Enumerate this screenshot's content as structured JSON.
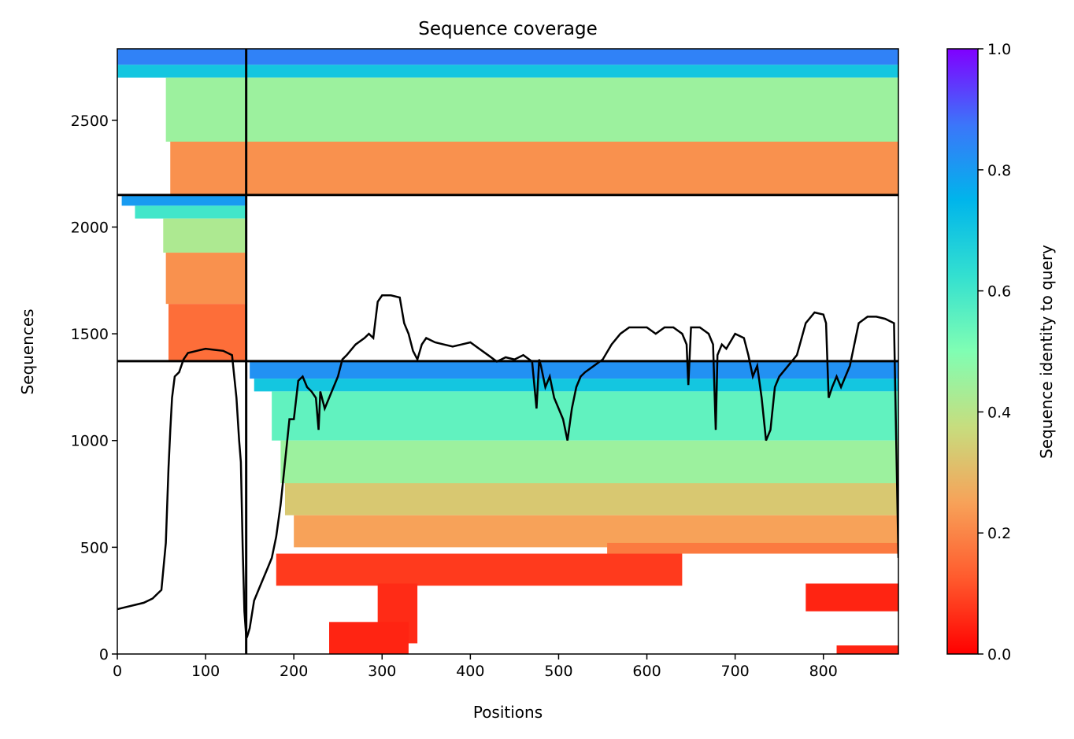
{
  "chart_data": {
    "type": "heatmap",
    "title": "Sequence coverage",
    "xlabel": "Positions",
    "ylabel": "Sequences",
    "xlim": [
      0,
      885
    ],
    "ylim": [
      0,
      2835
    ],
    "xticks": [
      0,
      100,
      200,
      300,
      400,
      500,
      600,
      700,
      800
    ],
    "yticks": [
      0,
      500,
      1000,
      1500,
      2000,
      2500
    ],
    "colorbar": {
      "label": "Sequence identity to query",
      "range": [
        0,
        1
      ],
      "ticks": [
        "0.0",
        "0.2",
        "0.4",
        "0.6",
        "0.8",
        "1.0"
      ],
      "colormap": "rainbow_r"
    },
    "chain_boundaries": {
      "x": 146,
      "y": [
        1372,
        2150
      ]
    },
    "blocks": [
      {
        "name": "chain-1-block",
        "x_range": [
          0,
          146
        ],
        "y_range": [
          1372,
          2150
        ],
        "bands": [
          {
            "y": [
              2100,
              2150
            ],
            "identity": 0.8,
            "x_start": 5
          },
          {
            "y": [
              2040,
              2100
            ],
            "identity": 0.6,
            "x_start": 20
          },
          {
            "y": [
              1880,
              2040
            ],
            "identity": 0.42,
            "x_start": 52
          },
          {
            "y": [
              1640,
              1880
            ],
            "identity": 0.22,
            "x_start": 55
          },
          {
            "y": [
              1372,
              1640
            ],
            "identity": 0.16,
            "x_start": 58
          }
        ]
      },
      {
        "name": "chain-2-block",
        "x_range": [
          146,
          885
        ],
        "y_range": [
          0,
          1372
        ],
        "bands": [
          {
            "y": [
              1290,
              1372
            ],
            "identity": 0.82,
            "x_start": 150,
            "x_end": 885
          },
          {
            "y": [
              1230,
              1290
            ],
            "identity": 0.7,
            "x_start": 155,
            "x_end": 885
          },
          {
            "y": [
              1000,
              1230
            ],
            "identity": 0.55,
            "x_start": 175,
            "x_end": 885
          },
          {
            "y": [
              800,
              1000
            ],
            "identity": 0.45,
            "x_start": 185,
            "x_end": 885
          },
          {
            "y": [
              650,
              800
            ],
            "identity": 0.33,
            "x_start": 190,
            "x_end": 885
          },
          {
            "y": [
              500,
              650
            ],
            "identity": 0.25,
            "x_start": 200,
            "x_end": 885
          },
          {
            "y": [
              470,
              520
            ],
            "identity": 0.18,
            "x_start": 555,
            "x_end": 885
          },
          {
            "y": [
              320,
              470
            ],
            "identity": 0.08,
            "x_start": 180,
            "x_end": 640
          },
          {
            "y": [
              200,
              330
            ],
            "identity": 0.05,
            "x_start": 780,
            "x_end": 885
          },
          {
            "y": [
              50,
              330
            ],
            "identity": 0.06,
            "x_start": 295,
            "x_end": 340
          },
          {
            "y": [
              0,
              150
            ],
            "identity": 0.05,
            "x_start": 240,
            "x_end": 330
          },
          {
            "y": [
              0,
              40
            ],
            "identity": 0.05,
            "x_start": 815,
            "x_end": 885
          }
        ]
      },
      {
        "name": "paired-block",
        "x_range": [
          0,
          885
        ],
        "y_range": [
          2150,
          2835
        ],
        "bands": [
          {
            "y": [
              2760,
              2835
            ],
            "identity": 0.85,
            "x_start": 0,
            "x_end": 885
          },
          {
            "y": [
              2700,
              2760
            ],
            "identity": 0.7,
            "x_start": 0,
            "x_end": 885
          },
          {
            "y": [
              2400,
              2700
            ],
            "identity": 0.45,
            "x_start": 55,
            "x_end": 885
          },
          {
            "y": [
              2150,
              2400
            ],
            "identity": 0.22,
            "x_start": 60,
            "x_end": 885
          }
        ]
      }
    ],
    "coverage_line": {
      "x": [
        0,
        10,
        20,
        30,
        40,
        45,
        50,
        55,
        58,
        60,
        62,
        65,
        70,
        75,
        80,
        90,
        100,
        110,
        120,
        130,
        135,
        138,
        140,
        142,
        144,
        146,
        147,
        150,
        155,
        160,
        165,
        170,
        175,
        180,
        185,
        190,
        195,
        200,
        205,
        210,
        215,
        220,
        225,
        228,
        230,
        235,
        240,
        245,
        250,
        255,
        260,
        270,
        280,
        285,
        290,
        295,
        300,
        310,
        320,
        325,
        330,
        335,
        340,
        345,
        350,
        360,
        370,
        380,
        390,
        400,
        410,
        420,
        430,
        440,
        450,
        460,
        470,
        475,
        478,
        480,
        485,
        490,
        495,
        500,
        505,
        510,
        515,
        520,
        525,
        530,
        540,
        550,
        560,
        570,
        580,
        590,
        600,
        610,
        620,
        630,
        640,
        645,
        647,
        650,
        660,
        670,
        675,
        678,
        680,
        685,
        690,
        700,
        710,
        715,
        720,
        725,
        730,
        735,
        740,
        745,
        750,
        760,
        770,
        780,
        790,
        800,
        803,
        806,
        810,
        815,
        820,
        825,
        830,
        840,
        850,
        860,
        870,
        880,
        885
      ],
      "y": [
        210,
        220,
        230,
        240,
        260,
        280,
        300,
        520,
        870,
        1050,
        1200,
        1300,
        1320,
        1380,
        1410,
        1420,
        1430,
        1425,
        1420,
        1400,
        1200,
        1000,
        900,
        500,
        200,
        80,
        80,
        120,
        250,
        300,
        350,
        400,
        450,
        550,
        700,
        900,
        1100,
        1100,
        1280,
        1300,
        1250,
        1230,
        1200,
        1050,
        1230,
        1150,
        1200,
        1250,
        1300,
        1380,
        1400,
        1450,
        1480,
        1500,
        1480,
        1650,
        1680,
        1680,
        1670,
        1550,
        1500,
        1420,
        1380,
        1450,
        1480,
        1460,
        1450,
        1440,
        1450,
        1460,
        1430,
        1400,
        1370,
        1390,
        1380,
        1400,
        1370,
        1150,
        1380,
        1350,
        1250,
        1300,
        1200,
        1150,
        1100,
        1000,
        1150,
        1250,
        1300,
        1320,
        1350,
        1380,
        1450,
        1500,
        1530,
        1530,
        1530,
        1500,
        1530,
        1530,
        1500,
        1450,
        1260,
        1530,
        1530,
        1500,
        1450,
        1050,
        1400,
        1450,
        1430,
        1500,
        1480,
        1400,
        1300,
        1350,
        1200,
        1000,
        1050,
        1250,
        1300,
        1350,
        1400,
        1550,
        1600,
        1590,
        1550,
        1200,
        1250,
        1300,
        1250,
        1300,
        1350,
        1550,
        1580,
        1580,
        1570,
        1550,
        450
      ]
    }
  }
}
